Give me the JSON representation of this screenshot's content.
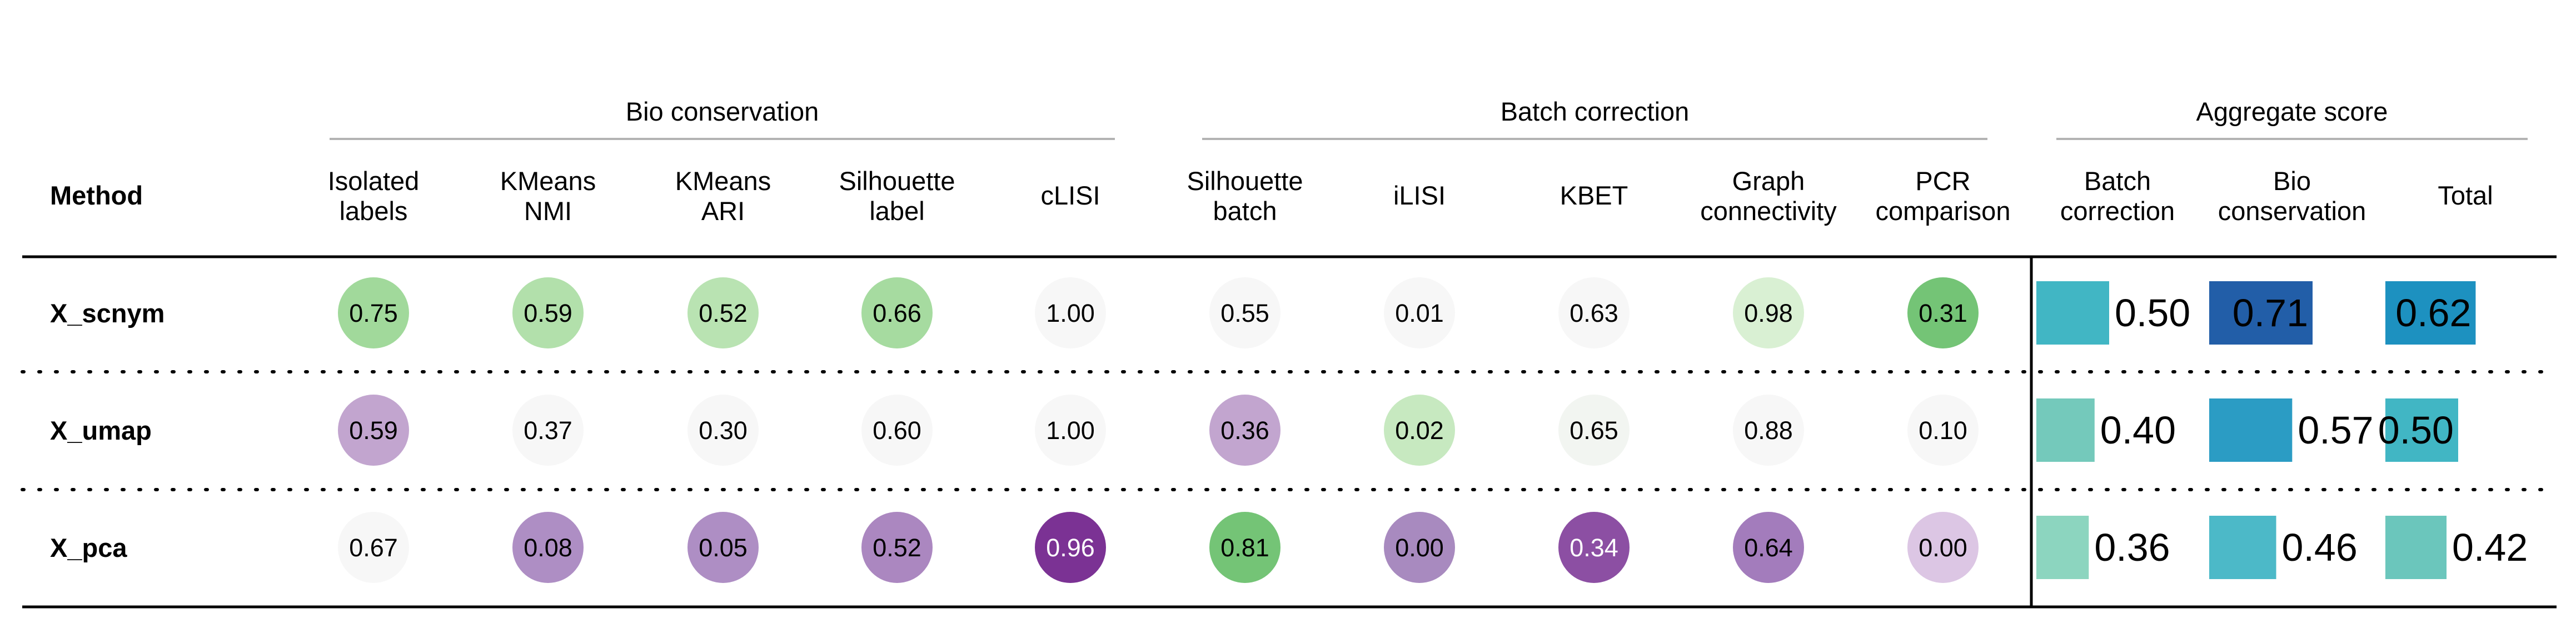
{
  "chart_data": {
    "type": "table",
    "method_header": "Method",
    "groups": [
      {
        "label": "Bio conservation",
        "columns": [
          0,
          1,
          2,
          3,
          4
        ]
      },
      {
        "label": "Batch correction",
        "columns": [
          5,
          6,
          7,
          8,
          9
        ]
      },
      {
        "label": "Aggregate score",
        "columns": [
          10,
          11,
          12
        ]
      }
    ],
    "metric_columns": [
      {
        "label": [
          "Isolated",
          "labels"
        ]
      },
      {
        "label": [
          "KMeans",
          "NMI"
        ]
      },
      {
        "label": [
          "KMeans",
          "ARI"
        ]
      },
      {
        "label": [
          "Silhouette",
          "label"
        ]
      },
      {
        "label": [
          "cLISI"
        ]
      },
      {
        "label": [
          "Silhouette",
          "batch"
        ]
      },
      {
        "label": [
          "iLISI"
        ]
      },
      {
        "label": [
          "KBET"
        ]
      },
      {
        "label": [
          "Graph",
          "connectivity"
        ]
      },
      {
        "label": [
          "PCR",
          "comparison"
        ]
      }
    ],
    "aggregate_columns": [
      {
        "label": [
          "Batch",
          "correction"
        ]
      },
      {
        "label": [
          "Bio",
          "conservation"
        ]
      },
      {
        "label": [
          "Total"
        ]
      }
    ],
    "rows": [
      {
        "method": "X_scnym",
        "metrics": [
          "0.75",
          "0.59",
          "0.52",
          "0.66",
          "1.00",
          "0.55",
          "0.01",
          "0.63",
          "0.98",
          "0.31"
        ],
        "metric_colors": [
          "#a1d99b",
          "#b2e0ab",
          "#b9e3b2",
          "#a6dba0",
          "#f7f7f7",
          "#f7f7f7",
          "#f7f7f7",
          "#f7f7f7",
          "#d9f0d3",
          "#74c476"
        ],
        "aggregates": [
          "0.50",
          "0.71",
          "0.62"
        ],
        "aggregate_colors": [
          "#41b6c4",
          "#225ea8",
          "#1d91c0"
        ]
      },
      {
        "method": "X_umap",
        "metrics": [
          "0.59",
          "0.37",
          "0.30",
          "0.60",
          "1.00",
          "0.36",
          "0.02",
          "0.65",
          "0.88",
          "0.10"
        ],
        "metric_colors": [
          "#c2a5cf",
          "#f7f7f7",
          "#f7f7f7",
          "#f7f7f7",
          "#f7f7f7",
          "#c2a5cf",
          "#c7e9c0",
          "#f2f5f1",
          "#f7f7f7",
          "#f7f7f7"
        ],
        "aggregates": [
          "0.40",
          "0.57",
          "0.50"
        ],
        "aggregate_colors": [
          "#74c9bb",
          "#2b9cc4",
          "#41b6c4"
        ]
      },
      {
        "method": "X_pca",
        "metrics": [
          "0.67",
          "0.08",
          "0.05",
          "0.52",
          "0.96",
          "0.81",
          "0.00",
          "0.34",
          "0.64",
          "0.00"
        ],
        "metric_colors": [
          "#f7f7f7",
          "#ae8ec4",
          "#ae8ec4",
          "#ab87c0",
          "#7b3294",
          "#74c476",
          "#a88abf",
          "#8c4fa3",
          "#a37cbc",
          "#dcc6e4"
        ],
        "aggregates": [
          "0.36",
          "0.46",
          "0.42"
        ],
        "aggregate_colors": [
          "#8cd5bf",
          "#4cb9c8",
          "#6bc6bc"
        ]
      }
    ],
    "xlim": [
      0,
      1
    ]
  }
}
